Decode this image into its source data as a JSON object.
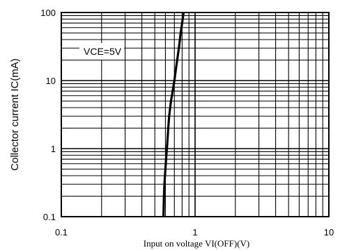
{
  "chart_data": {
    "type": "line",
    "title": "",
    "xlabel": "Input on voltage VI(OFF)(V)",
    "ylabel": "Collector current IC(mA)",
    "xscale": "log",
    "yscale": "log",
    "xlim": [
      0.1,
      10
    ],
    "ylim": [
      0.1,
      100
    ],
    "grid": true,
    "x_ticks": [
      "0.1",
      "1",
      "10"
    ],
    "y_ticks": [
      "100",
      "10",
      "1",
      "0.1"
    ],
    "annotation": "VCE=5V",
    "series": [
      {
        "x": [
          0.58,
          0.585,
          0.59,
          0.6,
          0.61,
          0.62,
          0.63,
          0.64,
          0.66,
          0.68,
          0.7,
          0.72,
          0.74,
          0.76,
          0.77,
          0.78,
          0.8,
          0.82
        ],
        "y": [
          0.1,
          0.2,
          0.3,
          0.5,
          0.8,
          1.2,
          2,
          3,
          5,
          7,
          10,
          15,
          22,
          32,
          40,
          50,
          70,
          100
        ]
      }
    ]
  }
}
